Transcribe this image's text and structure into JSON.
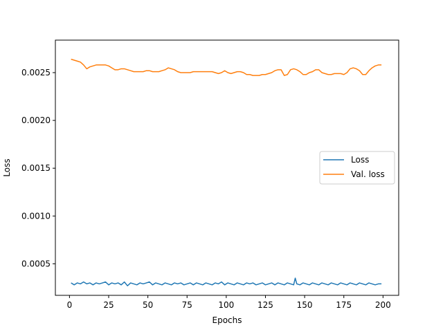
{
  "chart_data": {
    "type": "line",
    "xlabel": "Epochs",
    "ylabel": "Loss",
    "xlim": [
      -9,
      210
    ],
    "ylim": [
      0.00017,
      0.00284
    ],
    "xticks": [
      0,
      25,
      50,
      75,
      100,
      125,
      150,
      175,
      200
    ],
    "xtick_labels": [
      "0",
      "25",
      "50",
      "75",
      "100",
      "125",
      "150",
      "175",
      "200"
    ],
    "yticks": [
      0.0005,
      0.001,
      0.0015,
      0.002,
      0.0025
    ],
    "ytick_labels": [
      "0.0005",
      "0.0010",
      "0.0015",
      "0.0020",
      "0.0025"
    ],
    "grid": false,
    "legend_position": "center-right",
    "series": [
      {
        "name": "Loss",
        "color": "#1f77b4",
        "x": [
          1,
          3,
          5,
          7,
          9,
          11,
          13,
          15,
          17,
          19,
          21,
          23,
          25,
          27,
          29,
          31,
          33,
          35,
          37,
          39,
          41,
          43,
          45,
          47,
          49,
          51,
          53,
          55,
          57,
          59,
          61,
          63,
          65,
          67,
          69,
          71,
          73,
          75,
          77,
          79,
          81,
          83,
          85,
          87,
          89,
          91,
          93,
          95,
          97,
          99,
          101,
          103,
          105,
          107,
          109,
          111,
          113,
          115,
          117,
          119,
          121,
          123,
          125,
          127,
          129,
          131,
          133,
          135,
          137,
          139,
          141,
          143,
          144,
          145,
          147,
          149,
          151,
          153,
          155,
          157,
          159,
          161,
          163,
          165,
          167,
          169,
          171,
          173,
          175,
          177,
          179,
          181,
          183,
          185,
          187,
          189,
          191,
          193,
          195,
          197,
          199
        ],
        "values": [
          0.0003,
          0.00028,
          0.0003,
          0.00029,
          0.00031,
          0.00029,
          0.0003,
          0.00028,
          0.0003,
          0.00029,
          0.0003,
          0.00031,
          0.00028,
          0.0003,
          0.00029,
          0.0003,
          0.00028,
          0.00031,
          0.00027,
          0.0003,
          0.00029,
          0.00028,
          0.0003,
          0.00029,
          0.0003,
          0.00031,
          0.00028,
          0.0003,
          0.00029,
          0.00028,
          0.0003,
          0.00029,
          0.00028,
          0.0003,
          0.00029,
          0.0003,
          0.00028,
          0.00029,
          0.0003,
          0.00028,
          0.0003,
          0.00029,
          0.00028,
          0.0003,
          0.00029,
          0.00028,
          0.0003,
          0.00029,
          0.00031,
          0.00028,
          0.0003,
          0.00029,
          0.00028,
          0.0003,
          0.00029,
          0.00028,
          0.0003,
          0.00029,
          0.0003,
          0.00028,
          0.00029,
          0.0003,
          0.00028,
          0.00029,
          0.0003,
          0.00028,
          0.0003,
          0.00029,
          0.00028,
          0.0003,
          0.00029,
          0.00028,
          0.00035,
          0.00029,
          0.00028,
          0.0003,
          0.00029,
          0.00028,
          0.0003,
          0.00029,
          0.00028,
          0.0003,
          0.00029,
          0.00028,
          0.0003,
          0.00029,
          0.00028,
          0.0003,
          0.00029,
          0.00028,
          0.0003,
          0.00029,
          0.00028,
          0.0003,
          0.00029,
          0.00028,
          0.0003,
          0.00029,
          0.00028,
          0.00029,
          0.00029
        ]
      },
      {
        "name": "Val. loss",
        "color": "#ff7f0e",
        "x": [
          1,
          3,
          5,
          7,
          9,
          11,
          13,
          15,
          17,
          19,
          21,
          23,
          25,
          27,
          29,
          31,
          33,
          35,
          37,
          39,
          41,
          43,
          45,
          47,
          49,
          51,
          53,
          55,
          57,
          59,
          61,
          63,
          65,
          67,
          69,
          71,
          73,
          75,
          77,
          79,
          81,
          83,
          85,
          87,
          89,
          91,
          93,
          95,
          97,
          99,
          101,
          103,
          105,
          107,
          109,
          111,
          113,
          115,
          117,
          119,
          121,
          123,
          125,
          127,
          129,
          131,
          133,
          135,
          137,
          139,
          141,
          143,
          145,
          147,
          149,
          151,
          153,
          155,
          157,
          159,
          161,
          163,
          165,
          167,
          169,
          171,
          173,
          175,
          177,
          179,
          181,
          183,
          185,
          187,
          189,
          191,
          193,
          195,
          197,
          199
        ],
        "values": [
          0.00264,
          0.00263,
          0.00262,
          0.00261,
          0.00258,
          0.00254,
          0.00256,
          0.00257,
          0.00258,
          0.00258,
          0.00258,
          0.00258,
          0.00257,
          0.00255,
          0.00253,
          0.00253,
          0.00254,
          0.00254,
          0.00253,
          0.00252,
          0.00251,
          0.00251,
          0.00251,
          0.00251,
          0.00252,
          0.00252,
          0.00251,
          0.00251,
          0.00251,
          0.00252,
          0.00253,
          0.00255,
          0.00254,
          0.00253,
          0.00251,
          0.0025,
          0.0025,
          0.0025,
          0.0025,
          0.00251,
          0.00251,
          0.00251,
          0.00251,
          0.00251,
          0.00251,
          0.00251,
          0.0025,
          0.00249,
          0.0025,
          0.00252,
          0.0025,
          0.00249,
          0.0025,
          0.00251,
          0.00251,
          0.0025,
          0.00248,
          0.00248,
          0.00247,
          0.00247,
          0.00247,
          0.00248,
          0.00248,
          0.00249,
          0.0025,
          0.00252,
          0.00253,
          0.00253,
          0.00247,
          0.00248,
          0.00253,
          0.00254,
          0.00253,
          0.00251,
          0.00248,
          0.00248,
          0.0025,
          0.00251,
          0.00253,
          0.00253,
          0.0025,
          0.00249,
          0.00248,
          0.00248,
          0.00249,
          0.00249,
          0.00249,
          0.00248,
          0.0025,
          0.00254,
          0.00255,
          0.00254,
          0.00252,
          0.00248,
          0.00248,
          0.00252,
          0.00255,
          0.00257,
          0.00258,
          0.00258
        ]
      }
    ]
  }
}
